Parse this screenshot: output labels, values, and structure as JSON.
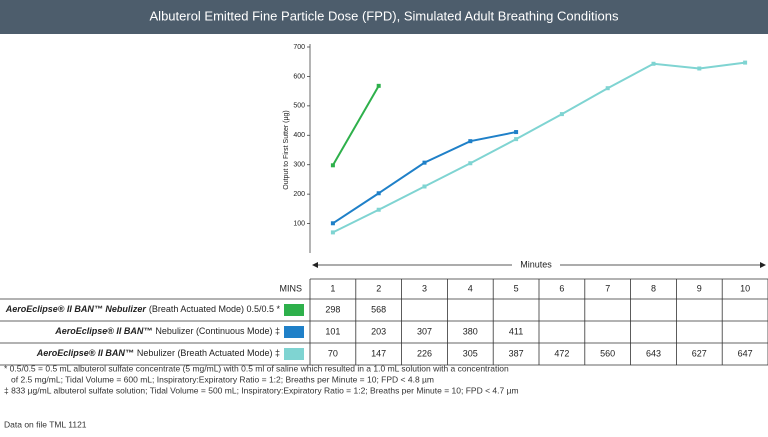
{
  "chart_data": {
    "type": "line",
    "title": "Albuterol Emitted Fine Particle Dose (FPD), Simulated Adult Breathing Conditions",
    "y_label": "Output to First Sutter (µg)",
    "x_label": "Minutes",
    "table_header": "MINS",
    "categories": [
      "1",
      "2",
      "3",
      "4",
      "5",
      "6",
      "7",
      "8",
      "9",
      "10"
    ],
    "ylim": [
      0,
      700
    ],
    "yticks": [
      100,
      200,
      300,
      400,
      500,
      600,
      700
    ],
    "series": [
      {
        "name": "AeroEclipse® II BAN™ Nebulizer",
        "detail": "(Breath Actuated Mode) 0.5/0.5 *",
        "color": "#2eb04b",
        "values": [
          298,
          568,
          null,
          null,
          null,
          null,
          null,
          null,
          null,
          null
        ]
      },
      {
        "name": "AeroEclipse® II BAN™",
        "detail": "Nebulizer (Continuous Mode) ‡",
        "color": "#1f80c8",
        "values": [
          101,
          203,
          307,
          380,
          411,
          null,
          null,
          null,
          null,
          null
        ]
      },
      {
        "name": "AeroEclipse® II BAN™",
        "detail": "Nebulizer (Breath Actuated Mode) ‡",
        "color": "#7fd4d2",
        "values": [
          70,
          147,
          226,
          305,
          387,
          472,
          560,
          643,
          627,
          647
        ]
      }
    ],
    "footnotes": [
      "* 0.5/0.5 = 0.5 mL albuterol sulfate concentrate (5 mg/mL) with 0.5 ml of saline which resulted in a 1.0 mL solution with a concentration",
      "of 2.5 mg/mL; Tidal Volume = 600 mL; Inspiratory:Expiratory Ratio = 1:2; Breaths per Minute = 10; FPD < 4.8 µm",
      "‡ 833 µg/mL albuterol sulfate solution; Tidal Volume = 500 mL; Inspiratory:Expiratory Ratio = 1:2; Breaths per Minute = 10; FPD < 4.7 µm"
    ],
    "source": "Data on file TML 1121"
  }
}
